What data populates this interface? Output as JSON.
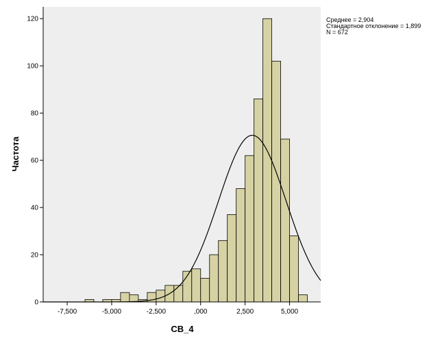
{
  "chart_data": {
    "type": "bar",
    "subtype": "histogram",
    "title": "",
    "xlabel": "CB_4",
    "ylabel": "Частота",
    "x_tick_labels": [
      "-7,500",
      "-5,000",
      "-2,500",
      ",000",
      "2,500",
      "5,000"
    ],
    "x_ticks": [
      -7.5,
      -5.0,
      -2.5,
      0.0,
      2.5,
      5.0
    ],
    "y_tick_labels": [
      "0",
      "20",
      "40",
      "60",
      "80",
      "100",
      "120"
    ],
    "y_ticks": [
      0,
      20,
      40,
      60,
      80,
      100,
      120
    ],
    "xlim": [
      -8.85,
      6.75
    ],
    "ylim": [
      0,
      125
    ],
    "bin_width": 0.5,
    "bin_starts": [
      -6.5,
      -6.0,
      -5.5,
      -5.0,
      -4.5,
      -4.0,
      -3.5,
      -3.0,
      -2.5,
      -2.0,
      -1.5,
      -1.0,
      -0.5,
      0.0,
      0.5,
      1.0,
      1.5,
      2.0,
      2.5,
      3.0,
      3.5,
      4.0,
      4.5,
      5.0,
      5.5
    ],
    "values": [
      1,
      0,
      1,
      1,
      4,
      3,
      1,
      4,
      5,
      7,
      7,
      13,
      14,
      10,
      20,
      26,
      37,
      48,
      62,
      86,
      120,
      102,
      69,
      28,
      3
    ],
    "bar_color": "#d6d2a4",
    "plot_background": "#eeeeee",
    "normal_curve": {
      "mean": 2.904,
      "sd": 1.899,
      "n": 672
    },
    "legend_position": "top-right, outside plot",
    "grid": false
  },
  "stats": {
    "mean": "Среднее = 2,904",
    "sd": "Стандартное отклонение = 1,899",
    "n": "N = 672"
  }
}
